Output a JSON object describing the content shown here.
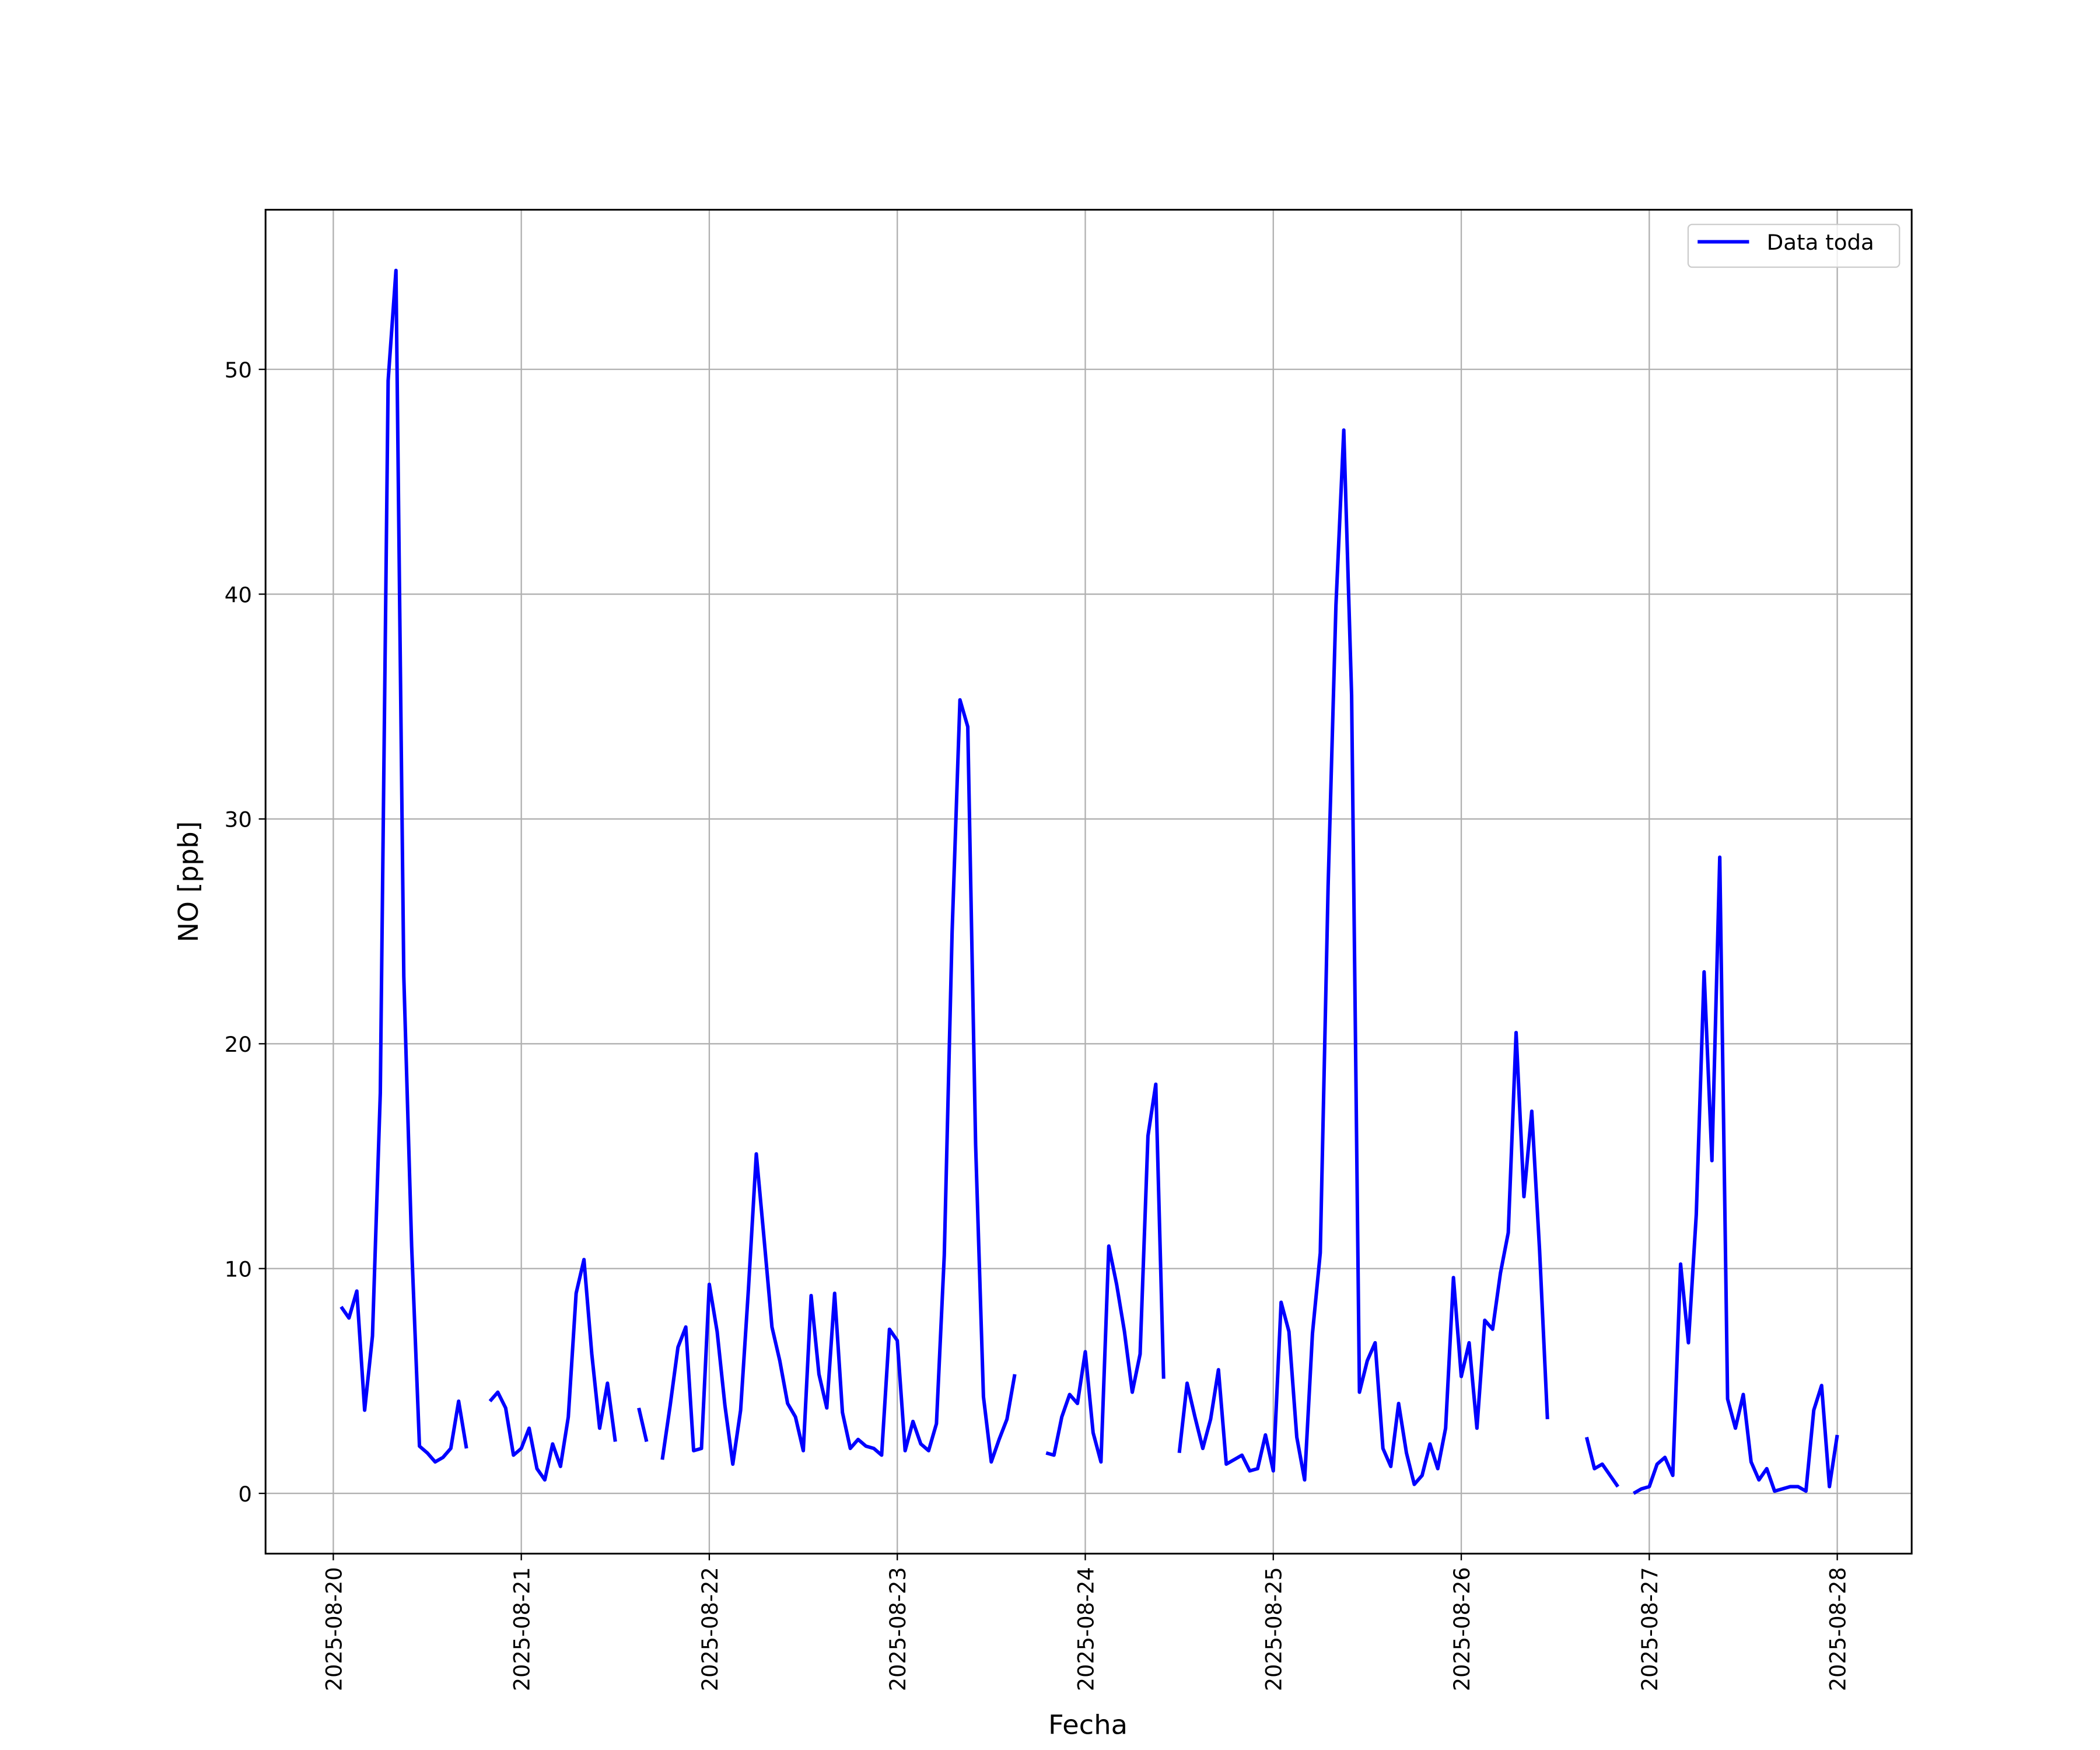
{
  "chart_data": {
    "type": "line",
    "xlabel": "Fecha",
    "ylabel": "NO [ppb]",
    "x": [
      "2025-08-20 01:00",
      "2025-08-20 02:00",
      "2025-08-20 03:00",
      "2025-08-20 04:00",
      "2025-08-20 05:00",
      "2025-08-20 06:00",
      "2025-08-20 07:00",
      "2025-08-20 08:00",
      "2025-08-20 09:00",
      "2025-08-20 10:00",
      "2025-08-20 11:00",
      "2025-08-20 12:00",
      "2025-08-20 13:00",
      "2025-08-20 14:00",
      "2025-08-20 15:00",
      "2025-08-20 16:00",
      "2025-08-20 17:00",
      "2025-08-20 18:00",
      "2025-08-20 19:00",
      "2025-08-20 20:00",
      "2025-08-20 21:00",
      "2025-08-20 22:00",
      "2025-08-20 23:00",
      "2025-08-21 00:00",
      "2025-08-21 01:00",
      "2025-08-21 02:00",
      "2025-08-21 03:00",
      "2025-08-21 04:00",
      "2025-08-21 05:00",
      "2025-08-21 06:00",
      "2025-08-21 07:00",
      "2025-08-21 08:00",
      "2025-08-21 09:00",
      "2025-08-21 10:00",
      "2025-08-21 11:00",
      "2025-08-21 12:00",
      "2025-08-21 13:00",
      "2025-08-21 14:00",
      "2025-08-21 15:00",
      "2025-08-21 16:00",
      "2025-08-21 17:00",
      "2025-08-21 18:00",
      "2025-08-21 19:00",
      "2025-08-21 20:00",
      "2025-08-21 21:00",
      "2025-08-21 22:00",
      "2025-08-21 23:00",
      "2025-08-22 00:00",
      "2025-08-22 01:00",
      "2025-08-22 02:00",
      "2025-08-22 03:00",
      "2025-08-22 04:00",
      "2025-08-22 05:00",
      "2025-08-22 06:00",
      "2025-08-22 07:00",
      "2025-08-22 08:00",
      "2025-08-22 09:00",
      "2025-08-22 10:00",
      "2025-08-22 11:00",
      "2025-08-22 12:00",
      "2025-08-22 13:00",
      "2025-08-22 14:00",
      "2025-08-22 15:00",
      "2025-08-22 16:00",
      "2025-08-22 17:00",
      "2025-08-22 18:00",
      "2025-08-22 19:00",
      "2025-08-22 20:00",
      "2025-08-22 21:00",
      "2025-08-22 22:00",
      "2025-08-22 23:00",
      "2025-08-23 00:00",
      "2025-08-23 01:00",
      "2025-08-23 02:00",
      "2025-08-23 03:00",
      "2025-08-23 04:00",
      "2025-08-23 05:00",
      "2025-08-23 06:00",
      "2025-08-23 07:00",
      "2025-08-23 08:00",
      "2025-08-23 09:00",
      "2025-08-23 10:00",
      "2025-08-23 11:00",
      "2025-08-23 12:00",
      "2025-08-23 13:00",
      "2025-08-23 14:00",
      "2025-08-23 15:00",
      "2025-08-23 16:00",
      "2025-08-23 17:00",
      "2025-08-23 18:00",
      "2025-08-23 19:00",
      "2025-08-23 20:00",
      "2025-08-23 21:00",
      "2025-08-23 22:00",
      "2025-08-23 23:00",
      "2025-08-24 00:00",
      "2025-08-24 01:00",
      "2025-08-24 02:00",
      "2025-08-24 03:00",
      "2025-08-24 04:00",
      "2025-08-24 05:00",
      "2025-08-24 06:00",
      "2025-08-24 07:00",
      "2025-08-24 08:00",
      "2025-08-24 09:00",
      "2025-08-24 10:00",
      "2025-08-24 11:00",
      "2025-08-24 12:00",
      "2025-08-24 13:00",
      "2025-08-24 14:00",
      "2025-08-24 15:00",
      "2025-08-24 16:00",
      "2025-08-24 17:00",
      "2025-08-24 18:00",
      "2025-08-24 19:00",
      "2025-08-24 20:00",
      "2025-08-24 21:00",
      "2025-08-24 22:00",
      "2025-08-24 23:00",
      "2025-08-25 00:00",
      "2025-08-25 01:00",
      "2025-08-25 02:00",
      "2025-08-25 03:00",
      "2025-08-25 04:00",
      "2025-08-25 05:00",
      "2025-08-25 06:00",
      "2025-08-25 07:00",
      "2025-08-25 08:00",
      "2025-08-25 09:00",
      "2025-08-25 10:00",
      "2025-08-25 11:00",
      "2025-08-25 12:00",
      "2025-08-25 13:00",
      "2025-08-25 14:00",
      "2025-08-25 15:00",
      "2025-08-25 16:00",
      "2025-08-25 17:00",
      "2025-08-25 18:00",
      "2025-08-25 19:00",
      "2025-08-25 20:00",
      "2025-08-25 21:00",
      "2025-08-25 22:00",
      "2025-08-25 23:00",
      "2025-08-26 00:00",
      "2025-08-26 01:00",
      "2025-08-26 02:00",
      "2025-08-26 03:00",
      "2025-08-26 04:00",
      "2025-08-26 05:00",
      "2025-08-26 06:00",
      "2025-08-26 07:00",
      "2025-08-26 08:00",
      "2025-08-26 09:00",
      "2025-08-26 10:00",
      "2025-08-26 11:00",
      "2025-08-26 12:00",
      "2025-08-26 13:00",
      "2025-08-26 14:00",
      "2025-08-26 15:00",
      "2025-08-26 16:00",
      "2025-08-26 17:00",
      "2025-08-26 18:00",
      "2025-08-26 19:00",
      "2025-08-26 20:00",
      "2025-08-26 21:00",
      "2025-08-26 22:00",
      "2025-08-26 23:00",
      "2025-08-27 00:00",
      "2025-08-27 01:00",
      "2025-08-27 02:00",
      "2025-08-27 03:00",
      "2025-08-27 04:00",
      "2025-08-27 05:00",
      "2025-08-27 06:00",
      "2025-08-27 07:00",
      "2025-08-27 08:00",
      "2025-08-27 09:00",
      "2025-08-27 10:00",
      "2025-08-27 11:00",
      "2025-08-27 12:00",
      "2025-08-27 13:00",
      "2025-08-27 14:00",
      "2025-08-27 15:00",
      "2025-08-27 16:00",
      "2025-08-27 17:00",
      "2025-08-27 18:00",
      "2025-08-27 19:00",
      "2025-08-27 20:00",
      "2025-08-27 21:00",
      "2025-08-27 22:00",
      "2025-08-27 23:00",
      "2025-08-28 00:00"
    ],
    "series": [
      {
        "name": "Data toda",
        "color": "#0000ff",
        "values": [
          8.3,
          7.8,
          9.0,
          3.7,
          7.0,
          17.8,
          49.5,
          54.4,
          23,
          11,
          2.1,
          1.8,
          1.4,
          1.6,
          2.0,
          4.1,
          2.0,
          null,
          null,
          4.1,
          4.5,
          3.8,
          1.7,
          2.0,
          2.9,
          1.1,
          0.6,
          2.2,
          1.2,
          3.4,
          8.9,
          10.4,
          6.2,
          2.9,
          4.9,
          2.3,
          null,
          null,
          3.8,
          2.3,
          null,
          1.5,
          3.9,
          6.5,
          7.4,
          1.9,
          2.0,
          9.3,
          7.2,
          3.9,
          1.3,
          3.7,
          9.1,
          15.1,
          11.3,
          7.4,
          5.9,
          4.0,
          3.4,
          1.9,
          8.8,
          5.3,
          3.8,
          8.9,
          3.6,
          2.0,
          2.4,
          2.1,
          2.0,
          1.7,
          7.3,
          6.8,
          1.9,
          3.2,
          2.2,
          1.9,
          3.1,
          10.6,
          25,
          35.3,
          34.1,
          15.5,
          4.3,
          1.4,
          2.4,
          3.3,
          5.3,
          null,
          null,
          null,
          1.8,
          1.7,
          3.4,
          4.4,
          4.0,
          6.3,
          2.7,
          1.4,
          11.0,
          9.3,
          7.2,
          4.5,
          6.2,
          15.9,
          18.2,
          5.1,
          null,
          1.8,
          4.9,
          3.4,
          2.0,
          3.3,
          5.5,
          1.3,
          1.5,
          1.7,
          1.0,
          1.1,
          2.6,
          1.0,
          8.5,
          7.2,
          2.5,
          0.6,
          7.1,
          10.7,
          27,
          39.5,
          47.3,
          35.5,
          4.5,
          5.9,
          6.7,
          2.0,
          1.2,
          4.0,
          1.8,
          0.4,
          0.8,
          2.2,
          1.1,
          2.9,
          9.6,
          5.2,
          6.7,
          2.9,
          7.7,
          7.3,
          9.8,
          11.6,
          20.5,
          13.2,
          17.0,
          10.8,
          3.3,
          null,
          null,
          null,
          null,
          2.5,
          1.1,
          1.3,
          0.8,
          0.3,
          null,
          0.0,
          0.2,
          0.3,
          1.3,
          1.6,
          0.8,
          10.2,
          6.7,
          12.4,
          23.2,
          14.8,
          28.3,
          4.2,
          2.9,
          4.4,
          1.4,
          0.6,
          1.1,
          0.1,
          0.2,
          0.3,
          0.3,
          0.1,
          3.7,
          4.8,
          0.3,
          2.6
        ]
      }
    ],
    "xlim": [
      "2025-08-19 15:21",
      "2025-08-28 09:30"
    ],
    "xticks": [
      "2025-08-20",
      "2025-08-21",
      "2025-08-22",
      "2025-08-23",
      "2025-08-24",
      "2025-08-25",
      "2025-08-26",
      "2025-08-27",
      "2025-08-28"
    ],
    "ylim": [
      -2.68,
      57.1
    ],
    "yticks": [
      0,
      10,
      20,
      30,
      40,
      50
    ],
    "grid": true,
    "legend": "upper right"
  }
}
